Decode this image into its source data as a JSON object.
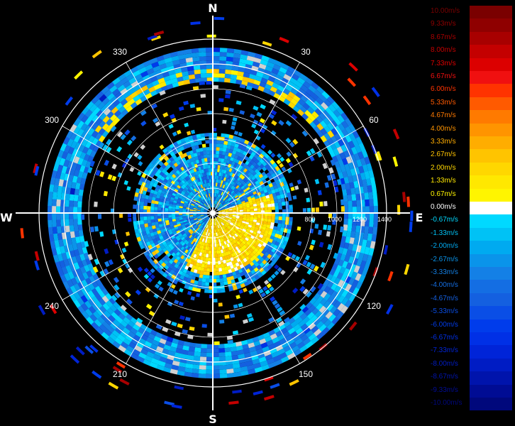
{
  "chart_data": {
    "type": "polar-radial-velocity",
    "cardinals": [
      "N",
      "E",
      "S",
      "W"
    ],
    "azimuth_labels": [
      "30",
      "60",
      "120",
      "150",
      "210",
      "240",
      "300",
      "330"
    ],
    "azimuth_angles": [
      30,
      60,
      120,
      150,
      210,
      240,
      300,
      330
    ],
    "range_labels": [
      "800",
      "1000",
      "1200",
      "1400"
    ],
    "range_values": [
      800,
      1000,
      1200,
      1400
    ],
    "range_max": 1700,
    "legend": [
      {
        "label": "10.00m/s",
        "color": "#7a0000"
      },
      {
        "label": "9.33m/s",
        "color": "#8f0000"
      },
      {
        "label": "8.67m/s",
        "color": "#a80000"
      },
      {
        "label": "8.00m/s",
        "color": "#c40000"
      },
      {
        "label": "7.33m/s",
        "color": "#dc0000"
      },
      {
        "label": "6.67m/s",
        "color": "#f01010"
      },
      {
        "label": "6.00m/s",
        "color": "#ff3300"
      },
      {
        "label": "5.33m/s",
        "color": "#ff5a00"
      },
      {
        "label": "4.67m/s",
        "color": "#ff7a00"
      },
      {
        "label": "4.00m/s",
        "color": "#ff9400"
      },
      {
        "label": "3.33m/s",
        "color": "#ffad00"
      },
      {
        "label": "2.67m/s",
        "color": "#ffc400"
      },
      {
        "label": "2.00m/s",
        "color": "#ffd700"
      },
      {
        "label": "1.33m/s",
        "color": "#ffe800"
      },
      {
        "label": "0.67m/s",
        "color": "#fff500"
      },
      {
        "label": "0.00m/s",
        "color": "#ffffff"
      },
      {
        "label": "-0.67m/s",
        "color": "#00d9ff"
      },
      {
        "label": "-1.33m/s",
        "color": "#00c2f5"
      },
      {
        "label": "-2.00m/s",
        "color": "#00aaf0"
      },
      {
        "label": "-2.67m/s",
        "color": "#0a94ea"
      },
      {
        "label": "-3.33m/s",
        "color": "#1480e6"
      },
      {
        "label": "-4.00m/s",
        "color": "#146ee3"
      },
      {
        "label": "-4.67m/s",
        "color": "#1460e0"
      },
      {
        "label": "-5.33m/s",
        "color": "#0a4ee6"
      },
      {
        "label": "-6.00m/s",
        "color": "#003ceb"
      },
      {
        "label": "-6.67m/s",
        "color": "#0030e6"
      },
      {
        "label": "-7.33m/s",
        "color": "#0024d8"
      },
      {
        "label": "-8.00m/s",
        "color": "#001cc4"
      },
      {
        "label": "-8.67m/s",
        "color": "#0014ac"
      },
      {
        "label": "-9.33m/s",
        "color": "#000c94"
      },
      {
        "label": "-10.00m/s",
        "color": "#00087c"
      }
    ]
  }
}
